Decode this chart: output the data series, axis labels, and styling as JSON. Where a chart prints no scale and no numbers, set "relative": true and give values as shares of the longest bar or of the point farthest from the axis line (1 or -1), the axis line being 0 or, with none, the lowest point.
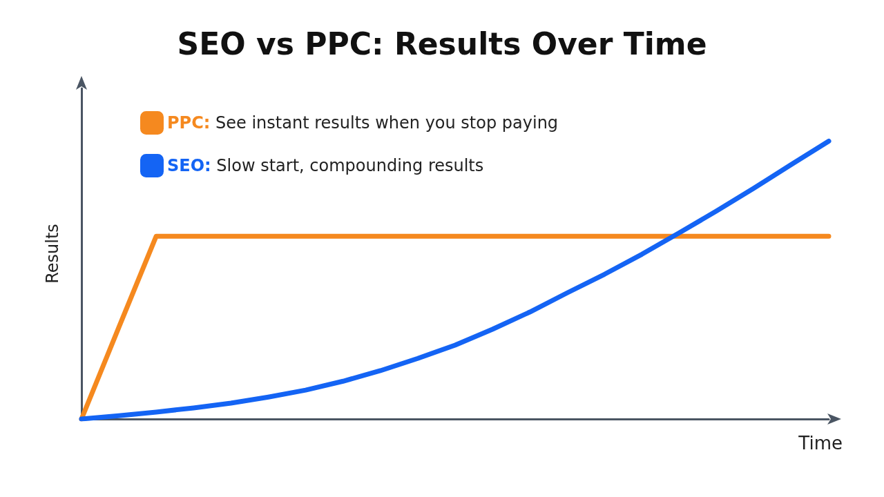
{
  "chart_data": {
    "type": "line",
    "title": "SEO vs PPC: Results Over Time",
    "xlabel": "Time",
    "ylabel": "Results",
    "relative": true,
    "grid": false,
    "legend": "top left",
    "marker": "none",
    "line_style": "solid",
    "categories": [
      null,
      null,
      null,
      null,
      null,
      null,
      null,
      null,
      null,
      null,
      null,
      null,
      null,
      null,
      null,
      null,
      null,
      null,
      null,
      null,
      null
    ],
    "series": [
      {
        "name": "PPC: See instant results when you stop paying",
        "color": "#f5891f",
        "values": [
          0,
          0.33,
          0.658,
          0.658,
          0.658,
          0.658,
          0.658,
          0.658,
          0.658,
          0.658,
          0.658,
          0.658,
          0.658,
          0.658,
          0.658,
          0.658,
          0.658,
          0.658,
          0.658,
          0.658,
          0.658
        ]
      },
      {
        "name": "SEO: Slow start, compounding results",
        "color": "#1464f4",
        "values": [
          0,
          0.012,
          0.025,
          0.04,
          0.057,
          0.079,
          0.104,
          0.136,
          0.174,
          0.218,
          0.266,
          0.323,
          0.385,
          0.454,
          0.521,
          0.593,
          0.67,
          0.749,
          0.831,
          0.916,
          1
        ]
      }
    ]
  }
}
